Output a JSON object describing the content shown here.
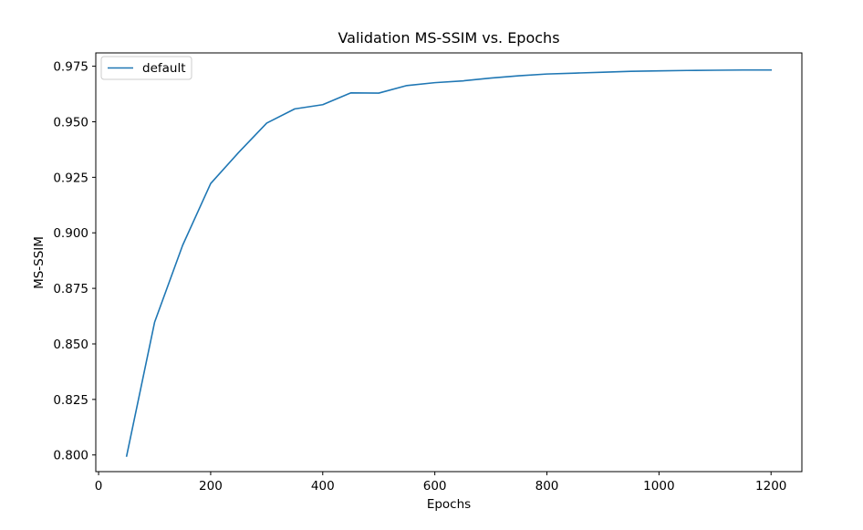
{
  "chart_data": {
    "type": "line",
    "title": "Validation MS-SSIM vs. Epochs",
    "xlabel": "Epochs",
    "ylabel": "MS-SSIM",
    "xlim": [
      -5,
      1255
    ],
    "ylim": [
      0.7925,
      0.981
    ],
    "xticks": [
      0,
      200,
      400,
      600,
      800,
      1000,
      1200
    ],
    "xtick_labels": [
      "0",
      "200",
      "400",
      "600",
      "800",
      "1000",
      "1200"
    ],
    "yticks": [
      0.8,
      0.825,
      0.85,
      0.875,
      0.9,
      0.925,
      0.95,
      0.975
    ],
    "ytick_labels": [
      "0.800",
      "0.825",
      "0.850",
      "0.875",
      "0.900",
      "0.925",
      "0.950",
      "0.975"
    ],
    "grid": false,
    "legend": {
      "position": "upper-left",
      "entries": [
        "default"
      ]
    },
    "series": [
      {
        "name": "default",
        "color": "#1f77b4",
        "x": [
          50,
          100,
          150,
          200,
          250,
          300,
          350,
          400,
          450,
          500,
          550,
          600,
          650,
          700,
          750,
          800,
          850,
          900,
          950,
          1000,
          1050,
          1100,
          1150,
          1200
        ],
        "y": [
          0.7995,
          0.8598,
          0.8944,
          0.9222,
          0.9362,
          0.9494,
          0.9558,
          0.9577,
          0.963,
          0.9629,
          0.9663,
          0.9676,
          0.9684,
          0.9697,
          0.9707,
          0.9715,
          0.9719,
          0.9723,
          0.9727,
          0.9729,
          0.9731,
          0.9732,
          0.9733,
          0.9733
        ]
      }
    ]
  }
}
